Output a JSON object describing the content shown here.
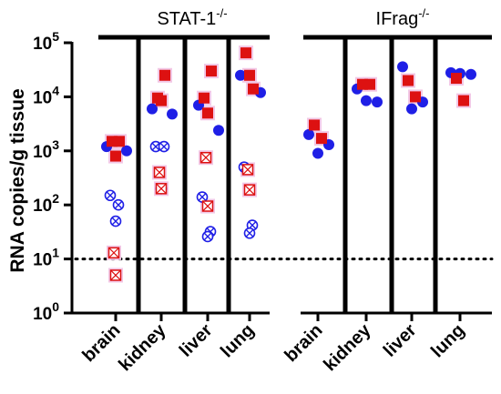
{
  "chart_data": {
    "type": "scatter",
    "ylabel": "RNA copies/g tissue",
    "yscale": "log",
    "ylim": [
      1,
      100000
    ],
    "yticks": [
      {
        "value": 1,
        "base": "10",
        "exp": "0"
      },
      {
        "value": 10,
        "base": "10",
        "exp": "1"
      },
      {
        "value": 100,
        "base": "10",
        "exp": "2"
      },
      {
        "value": 1000,
        "base": "10",
        "exp": "3"
      },
      {
        "value": 10000,
        "base": "10",
        "exp": "4"
      },
      {
        "value": 100000,
        "base": "10",
        "exp": "5"
      }
    ],
    "reference_line": {
      "value": 10,
      "style": "dotted"
    },
    "groups": [
      {
        "title_base": "STAT-1",
        "title_sup": "-/-",
        "categories": [
          {
            "label": "brain",
            "series": {
              "blue_circle": [
                1200,
                1000
              ],
              "red_square": [
                1500,
                1500,
                800
              ],
              "blue_crossed_circle": [
                150,
                100,
                50
              ],
              "red_crossed_square": [
                13,
                5
              ]
            }
          },
          {
            "label": "kidney",
            "series": {
              "blue_circle": [
                6000,
                4800
              ],
              "red_square": [
                9500,
                25000,
                8500
              ],
              "blue_crossed_circle": [
                1200,
                1200,
                200
              ],
              "red_crossed_square": [
                400,
                200
              ]
            }
          },
          {
            "label": "liver",
            "series": {
              "blue_circle": [
                7000,
                2400
              ],
              "red_square": [
                9500,
                30000,
                5000
              ],
              "blue_crossed_circle": [
                140,
                32,
                26
              ],
              "red_crossed_square": [
                750,
                95
              ]
            }
          },
          {
            "label": "lung",
            "series": {
              "blue_circle": [
                25000,
                12000
              ],
              "red_square": [
                65000,
                14000,
                25000
              ],
              "blue_crossed_circle": [
                500,
                42,
                30
              ],
              "red_crossed_square": [
                450,
                190
              ]
            }
          }
        ]
      },
      {
        "title_base": "IFrag",
        "title_sup": "-/-",
        "categories": [
          {
            "label": "brain",
            "series": {
              "blue_circle": [
                2000,
                1300,
                900
              ],
              "red_square": [
                3000,
                1700
              ]
            }
          },
          {
            "label": "kidney",
            "series": {
              "blue_circle": [
                14000,
                8000,
                8500
              ],
              "red_square": [
                17000,
                17000
              ]
            }
          },
          {
            "label": "liver",
            "series": {
              "blue_circle": [
                36000,
                8000,
                6000
              ],
              "red_square": [
                20000,
                10000
              ]
            }
          },
          {
            "label": "lung",
            "series": {
              "blue_circle": [
                28000,
                26000,
                27000
              ],
              "red_square": [
                22000,
                8500
              ]
            }
          }
        ]
      }
    ],
    "colors": {
      "blue": "#1f1fe6",
      "red": "#dd1111",
      "halo": "#f2c8e6"
    }
  }
}
